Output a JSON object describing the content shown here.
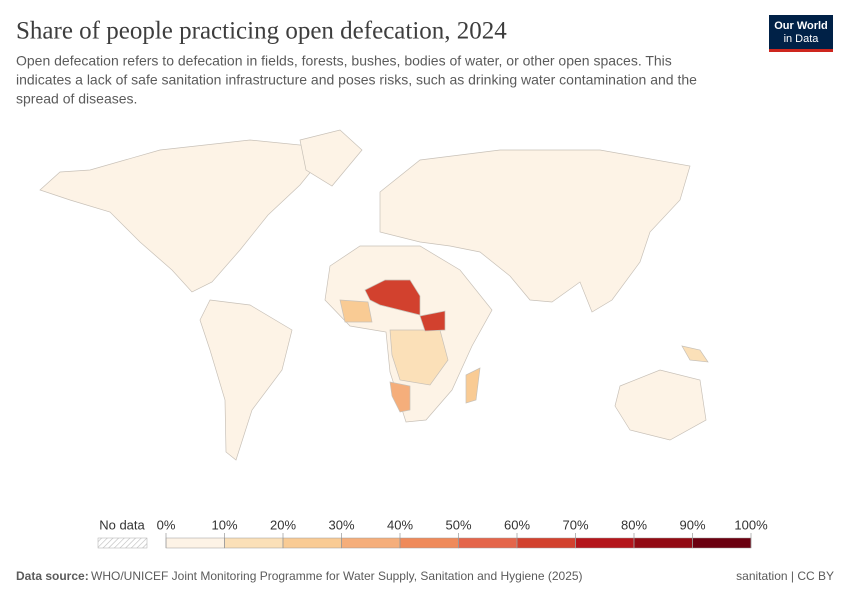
{
  "header": {
    "title": "Share of people practicing open defecation, 2024",
    "subtitle": [
      "Open defecation refers to defecation in fields, forests, bushes, bodies of water, or other open spaces. This",
      "indicates a lack of safe sanitation infrastructure and poses risks, such as drinking water contamination and the",
      "spread of diseases."
    ],
    "logo": [
      "Our World",
      "in Data"
    ]
  },
  "legend": {
    "no_data": "No data",
    "ticks": [
      {
        "value": 0,
        "label": "0%"
      },
      {
        "value": 10,
        "label": "10%"
      },
      {
        "value": 20,
        "label": "20%"
      },
      {
        "value": 30,
        "label": "30%"
      },
      {
        "value": 40,
        "label": "40%"
      },
      {
        "value": 50,
        "label": "50%"
      },
      {
        "value": 60,
        "label": "60%"
      },
      {
        "value": 70,
        "label": "70%"
      },
      {
        "value": 80,
        "label": "80%"
      },
      {
        "value": 90,
        "label": "90%"
      },
      {
        "value": 100,
        "label": "100%"
      }
    ],
    "colors": [
      "#fdf3e6",
      "#fbe0b8",
      "#f9cb94",
      "#f5ae7b",
      "#ef8a5a",
      "#e4654a",
      "#d2412e",
      "#b4151b",
      "#920a13",
      "#6b0010"
    ]
  },
  "footer": {
    "source_label": "Data source:",
    "source": "WHO/UNICEF Joint Monitoring Programme for Water Supply, Sanitation and Hygiene (2025)",
    "right": "sanitation | CC BY"
  }
}
